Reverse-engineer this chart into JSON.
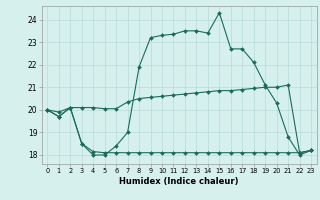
{
  "xlabel": "Humidex (Indice chaleur)",
  "background_color": "#d6f0ee",
  "grid_color": "#b8dbd8",
  "line_color": "#1a6b5a",
  "x_ticks": [
    0,
    1,
    2,
    3,
    4,
    5,
    6,
    7,
    8,
    9,
    10,
    11,
    12,
    13,
    14,
    15,
    16,
    17,
    18,
    19,
    20,
    21,
    22,
    23
  ],
  "y_ticks": [
    18,
    19,
    20,
    21,
    22,
    23,
    24
  ],
  "ylim": [
    17.6,
    24.6
  ],
  "xlim": [
    -0.5,
    23.5
  ],
  "line1_x": [
    0,
    1,
    2,
    3,
    4,
    5,
    6,
    7,
    8,
    9,
    10,
    11,
    12,
    13,
    14,
    15,
    16,
    17,
    18,
    19,
    20,
    21,
    22,
    23
  ],
  "line1_y": [
    20.0,
    19.7,
    20.1,
    18.5,
    18.0,
    18.0,
    18.4,
    19.0,
    21.9,
    23.2,
    23.3,
    23.35,
    23.5,
    23.5,
    23.4,
    24.3,
    22.7,
    22.7,
    22.1,
    21.1,
    20.3,
    18.8,
    18.0,
    18.2
  ],
  "line2_x": [
    0,
    1,
    2,
    3,
    4,
    5,
    6,
    7,
    8,
    9,
    10,
    11,
    12,
    13,
    14,
    15,
    16,
    17,
    18,
    19,
    20,
    21,
    22,
    23
  ],
  "line2_y": [
    20.0,
    19.9,
    20.1,
    20.1,
    20.1,
    20.05,
    20.05,
    20.35,
    20.5,
    20.55,
    20.6,
    20.65,
    20.7,
    20.75,
    20.8,
    20.85,
    20.85,
    20.9,
    20.95,
    21.0,
    21.0,
    21.1,
    18.1,
    18.2
  ],
  "line3_x": [
    0,
    1,
    2,
    3,
    4,
    5,
    6,
    7,
    8,
    9,
    10,
    11,
    12,
    13,
    14,
    15,
    16,
    17,
    18,
    19,
    20,
    21,
    22,
    23
  ],
  "line3_y": [
    20.0,
    19.7,
    20.1,
    18.5,
    18.15,
    18.1,
    18.1,
    18.1,
    18.1,
    18.1,
    18.1,
    18.1,
    18.1,
    18.1,
    18.1,
    18.1,
    18.1,
    18.1,
    18.1,
    18.1,
    18.1,
    18.1,
    18.1,
    18.2
  ]
}
